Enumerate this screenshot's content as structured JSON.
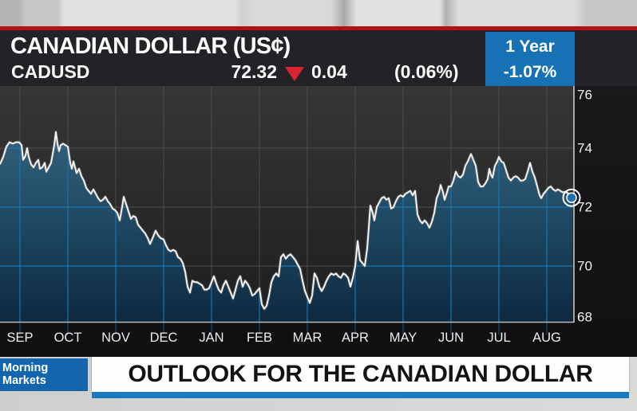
{
  "header": {
    "title": "CANADIAN DOLLAR (US¢)",
    "ticker": "CADUSD",
    "last_price": "72.32",
    "change": "0.04",
    "change_direction": "down",
    "change_pct": "(0.06%)",
    "period_label": "1 Year",
    "period_change": "-1.07%"
  },
  "banner": {
    "show_line1": "Morning",
    "show_line2": "Markets",
    "headline": "OUTLOOK FOR THE CANADIAN DOLLAR"
  },
  "colors": {
    "red_rule": "#b11218",
    "accent_blue": "#1671b5",
    "banner_blue": "#1a79c0",
    "show_box_blue": "#1366ad",
    "line": "#f2f2f2",
    "line_shadow": "#63666a",
    "grid_gray": "#4d4d4d",
    "grid_blue": "#1b74b4",
    "axis": "#cccccc",
    "tick_stub": "#1b4e6e",
    "fill_top": "#33617c",
    "fill_mid": "#1f4a64",
    "fill_bottom": "#0e2940",
    "marker_fill": "#1e6fb2",
    "down_red": "#d8252f"
  },
  "chart_data": {
    "type": "area",
    "title": "CADUSD 1 Year price history",
    "x_ticks": [
      "SEP",
      "OCT",
      "NOV",
      "DEC",
      "JAN",
      "FEB",
      "MAR",
      "APR",
      "MAY",
      "JUN",
      "JUL",
      "AUG"
    ],
    "y_ticks": [
      76,
      74,
      72,
      70,
      68
    ],
    "ylim": [
      67.9,
      76.1
    ],
    "grid": true,
    "last_value": 72.32,
    "series": [
      {
        "name": "CADUSD",
        "points": [
          [
            0,
            73.45
          ],
          [
            4,
            73.7
          ],
          [
            8,
            74.05
          ],
          [
            12,
            74.2
          ],
          [
            16,
            74.15
          ],
          [
            20,
            74.2
          ],
          [
            24,
            74.2
          ],
          [
            27,
            74.1
          ],
          [
            29,
            73.6
          ],
          [
            32,
            73.75
          ],
          [
            34,
            74.0
          ],
          [
            36,
            73.7
          ],
          [
            39,
            73.45
          ],
          [
            42,
            73.35
          ],
          [
            45,
            73.5
          ],
          [
            48,
            73.6
          ],
          [
            50,
            73.3
          ],
          [
            53,
            73.35
          ],
          [
            56,
            73.5
          ],
          [
            58,
            73.2
          ],
          [
            61,
            73.35
          ],
          [
            64,
            73.5
          ],
          [
            66,
            73.8
          ],
          [
            68,
            74.1
          ],
          [
            70,
            74.55
          ],
          [
            72,
            74.15
          ],
          [
            74,
            73.9
          ],
          [
            76,
            74.1
          ],
          [
            79,
            74.15
          ],
          [
            82,
            74.1
          ],
          [
            85,
            74.05
          ],
          [
            88,
            73.5
          ],
          [
            90,
            73.3
          ],
          [
            92,
            73.55
          ],
          [
            94,
            73.35
          ],
          [
            96,
            73.15
          ],
          [
            99,
            73.3
          ],
          [
            102,
            73.05
          ],
          [
            105,
            72.9
          ],
          [
            108,
            72.65
          ],
          [
            111,
            72.55
          ],
          [
            114,
            72.45
          ],
          [
            117,
            72.6
          ],
          [
            120,
            72.45
          ],
          [
            123,
            72.3
          ],
          [
            126,
            72.2
          ],
          [
            129,
            72.25
          ],
          [
            132,
            72.35
          ],
          [
            135,
            72.2
          ],
          [
            138,
            72.1
          ],
          [
            141,
            71.95
          ],
          [
            144,
            71.9
          ],
          [
            147,
            71.8
          ],
          [
            150,
            71.55
          ],
          [
            153,
            72.0
          ],
          [
            155,
            72.35
          ],
          [
            158,
            72.1
          ],
          [
            161,
            71.85
          ],
          [
            164,
            71.6
          ],
          [
            167,
            71.7
          ],
          [
            170,
            71.65
          ],
          [
            173,
            71.4
          ],
          [
            176,
            71.3
          ],
          [
            179,
            71.2
          ],
          [
            182,
            71.1
          ],
          [
            185,
            70.95
          ],
          [
            188,
            70.75
          ],
          [
            192,
            71.0
          ],
          [
            195,
            71.2
          ],
          [
            198,
            71.05
          ],
          [
            201,
            70.95
          ],
          [
            205,
            70.9
          ],
          [
            208,
            70.7
          ],
          [
            211,
            70.55
          ],
          [
            214,
            70.5
          ],
          [
            217,
            70.55
          ],
          [
            220,
            70.5
          ],
          [
            223,
            70.3
          ],
          [
            226,
            70.25
          ],
          [
            229,
            70.1
          ],
          [
            232,
            69.8
          ],
          [
            235,
            69.3
          ],
          [
            238,
            69.1
          ],
          [
            241,
            69.5
          ],
          [
            244,
            69.45
          ],
          [
            247,
            69.45
          ],
          [
            250,
            69.4
          ],
          [
            253,
            69.35
          ],
          [
            256,
            69.2
          ],
          [
            259,
            69.2
          ],
          [
            262,
            69.25
          ],
          [
            265,
            69.45
          ],
          [
            268,
            69.65
          ],
          [
            271,
            69.4
          ],
          [
            274,
            69.2
          ],
          [
            277,
            69.1
          ],
          [
            280,
            69.35
          ],
          [
            283,
            69.5
          ],
          [
            286,
            69.3
          ],
          [
            289,
            69.1
          ],
          [
            292,
            68.9
          ],
          [
            295,
            69.2
          ],
          [
            298,
            69.5
          ],
          [
            301,
            69.65
          ],
          [
            304,
            69.3
          ],
          [
            307,
            69.5
          ],
          [
            310,
            69.4
          ],
          [
            313,
            69.25
          ],
          [
            316,
            69.0
          ],
          [
            319,
            69.05
          ],
          [
            322,
            69.15
          ],
          [
            325,
            69.25
          ],
          [
            328,
            68.7
          ],
          [
            331,
            68.55
          ],
          [
            334,
            68.65
          ],
          [
            337,
            69.0
          ],
          [
            340,
            69.45
          ],
          [
            343,
            69.65
          ],
          [
            346,
            69.75
          ],
          [
            349,
            69.65
          ],
          [
            352,
            70.3
          ],
          [
            355,
            70.4
          ],
          [
            358,
            70.25
          ],
          [
            361,
            70.35
          ],
          [
            364,
            70.4
          ],
          [
            367,
            70.3
          ],
          [
            370,
            70.2
          ],
          [
            373,
            70.05
          ],
          [
            376,
            69.9
          ],
          [
            379,
            69.5
          ],
          [
            382,
            69.15
          ],
          [
            385,
            68.95
          ],
          [
            388,
            68.75
          ],
          [
            391,
            69.0
          ],
          [
            394,
            69.75
          ],
          [
            397,
            69.6
          ],
          [
            400,
            69.3
          ],
          [
            403,
            69.15
          ],
          [
            406,
            69.3
          ],
          [
            409,
            69.5
          ],
          [
            412,
            69.65
          ],
          [
            415,
            69.75
          ],
          [
            418,
            69.7
          ],
          [
            421,
            69.75
          ],
          [
            424,
            69.65
          ],
          [
            427,
            69.6
          ],
          [
            430,
            69.75
          ],
          [
            433,
            69.7
          ],
          [
            436,
            69.6
          ],
          [
            439,
            69.3
          ],
          [
            442,
            69.6
          ],
          [
            445,
            70.0
          ],
          [
            448,
            70.85
          ],
          [
            451,
            70.2
          ],
          [
            454,
            70.1
          ],
          [
            457,
            70.0
          ],
          [
            460,
            70.6
          ],
          [
            462,
            71.3
          ],
          [
            464,
            72.05
          ],
          [
            467,
            71.8
          ],
          [
            469,
            71.55
          ],
          [
            472,
            72.0
          ],
          [
            475,
            72.15
          ],
          [
            478,
            72.3
          ],
          [
            481,
            72.35
          ],
          [
            484,
            72.25
          ],
          [
            487,
            72.3
          ],
          [
            490,
            71.95
          ],
          [
            493,
            72.0
          ],
          [
            496,
            72.2
          ],
          [
            499,
            72.35
          ],
          [
            502,
            72.4
          ],
          [
            505,
            72.35
          ],
          [
            508,
            72.45
          ],
          [
            511,
            72.5
          ],
          [
            514,
            72.55
          ],
          [
            517,
            72.4
          ],
          [
            520,
            72.55
          ],
          [
            523,
            71.75
          ],
          [
            526,
            71.55
          ],
          [
            529,
            71.45
          ],
          [
            532,
            71.55
          ],
          [
            535,
            71.45
          ],
          [
            538,
            71.3
          ],
          [
            541,
            71.5
          ],
          [
            544,
            71.8
          ],
          [
            547,
            72.3
          ],
          [
            550,
            72.5
          ],
          [
            552,
            72.75
          ],
          [
            555,
            72.5
          ],
          [
            557,
            72.25
          ],
          [
            560,
            72.5
          ],
          [
            562,
            72.7
          ],
          [
            565,
            72.7
          ],
          [
            568,
            72.9
          ],
          [
            571,
            73.2
          ],
          [
            574,
            73.05
          ],
          [
            577,
            73.0
          ],
          [
            580,
            73.1
          ],
          [
            583,
            73.4
          ],
          [
            586,
            73.55
          ],
          [
            590,
            73.8
          ],
          [
            593,
            73.6
          ],
          [
            596,
            73.4
          ],
          [
            599,
            72.85
          ],
          [
            602,
            72.7
          ],
          [
            605,
            72.7
          ],
          [
            608,
            72.8
          ],
          [
            611,
            72.95
          ],
          [
            613,
            73.3
          ],
          [
            615,
            73.1
          ],
          [
            617,
            73.0
          ],
          [
            620,
            73.4
          ],
          [
            623,
            73.55
          ],
          [
            625,
            73.7
          ],
          [
            628,
            73.55
          ],
          [
            631,
            73.5
          ],
          [
            634,
            73.25
          ],
          [
            637,
            73.0
          ],
          [
            640,
            72.9
          ],
          [
            643,
            73.0
          ],
          [
            646,
            73.05
          ],
          [
            649,
            73.0
          ],
          [
            652,
            72.9
          ],
          [
            655,
            72.9
          ],
          [
            658,
            72.95
          ],
          [
            661,
            73.2
          ],
          [
            664,
            73.5
          ],
          [
            667,
            73.2
          ],
          [
            670,
            73.0
          ],
          [
            673,
            72.7
          ],
          [
            676,
            72.4
          ],
          [
            678,
            72.3
          ],
          [
            681,
            72.45
          ],
          [
            684,
            72.55
          ],
          [
            687,
            72.65
          ],
          [
            690,
            72.7
          ],
          [
            693,
            72.6
          ],
          [
            696,
            72.55
          ],
          [
            699,
            72.6
          ],
          [
            702,
            72.55
          ],
          [
            705,
            72.5
          ],
          [
            708,
            72.52
          ],
          [
            711,
            72.48
          ],
          [
            714,
            72.4
          ],
          [
            717,
            72.32
          ]
        ]
      }
    ]
  }
}
